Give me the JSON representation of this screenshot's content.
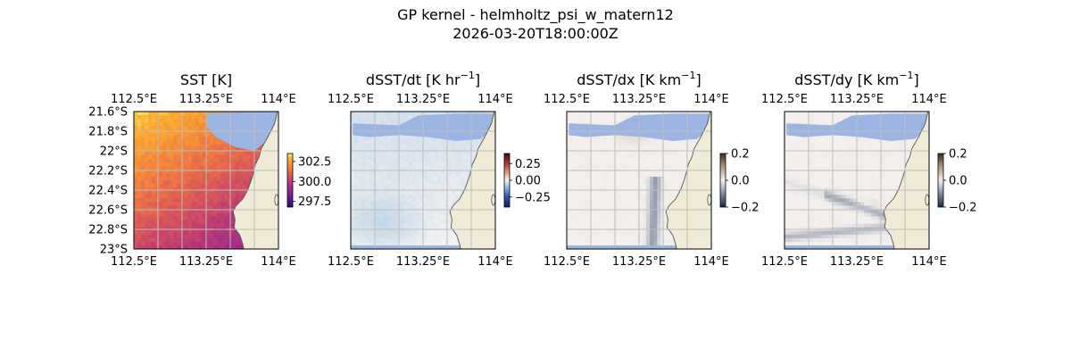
{
  "figure": {
    "title": "GP kernel - helmholtz_psi_w_matern12",
    "subtitle": "2026-03-20T18:00:00Z"
  },
  "chart_data": [
    {
      "type": "heatmap",
      "title": "SST [K]",
      "title_sup": "",
      "title_suffix": "",
      "x_ticks": [
        "112.5°E",
        "113.25°E",
        "114°E"
      ],
      "x_tick_values": [
        112.5,
        113.25,
        114.0
      ],
      "y_ticks": [
        "21.6°S",
        "21.8°S",
        "22°S",
        "22.2°S",
        "22.4°S",
        "22.6°S",
        "22.8°S",
        "23°S"
      ],
      "y_tick_values": [
        -21.6,
        -21.8,
        -22.0,
        -22.2,
        -22.4,
        -22.6,
        -22.8,
        -23.0
      ],
      "xlim": [
        112.5,
        114.0
      ],
      "ylim": [
        -23.0,
        -21.6
      ],
      "colorbar": {
        "ticks": [
          "302.5",
          "300.0",
          "297.5"
        ],
        "tick_values": [
          302.5,
          300.0,
          297.5
        ],
        "range": [
          296.8,
          303.5
        ],
        "colormap": "plasma"
      },
      "colors": {
        "land": "#efebd6",
        "missing": "#9ab5e2",
        "grid": "#bdbdbd"
      },
      "grid": true
    },
    {
      "type": "heatmap",
      "title": "dSST/dt [K hr",
      "title_sup": "−1",
      "title_suffix": "]",
      "x_ticks": [
        "112.5°E",
        "113.25°E",
        "114°E"
      ],
      "x_tick_values": [
        112.5,
        113.25,
        114.0
      ],
      "y_ticks": [],
      "xlim": [
        112.5,
        114.0
      ],
      "ylim": [
        -23.0,
        -21.6
      ],
      "colorbar": {
        "ticks": [
          "0.25",
          "0.00",
          "−0.25"
        ],
        "tick_values": [
          0.25,
          0.0,
          -0.25
        ],
        "range": [
          -0.4,
          0.4
        ],
        "colormap": "balance"
      },
      "colors": {
        "land": "#efebd6",
        "missing": "#9ab5e2",
        "grid": "#bdbdbd"
      },
      "grid": true
    },
    {
      "type": "heatmap",
      "title": "dSST/dx [K km",
      "title_sup": "−1",
      "title_suffix": "]",
      "x_ticks": [
        "112.5°E",
        "113.25°E",
        "114°E"
      ],
      "x_tick_values": [
        112.5,
        113.25,
        114.0
      ],
      "y_ticks": [],
      "xlim": [
        112.5,
        114.0
      ],
      "ylim": [
        -23.0,
        -21.6
      ],
      "colorbar": {
        "ticks": [
          "0.2",
          "0.0",
          "−0.2"
        ],
        "tick_values": [
          0.2,
          0.0,
          -0.2
        ],
        "range": [
          -0.2,
          0.2
        ],
        "colormap": "diff"
      },
      "colors": {
        "land": "#efebd6",
        "missing": "#9ab5e2",
        "grid": "#bdbdbd"
      },
      "grid": true
    },
    {
      "type": "heatmap",
      "title": "dSST/dy [K km",
      "title_sup": "−1",
      "title_suffix": "]",
      "x_ticks": [
        "112.5°E",
        "113.25°E",
        "114°E"
      ],
      "x_tick_values": [
        112.5,
        113.25,
        114.0
      ],
      "y_ticks": [],
      "xlim": [
        112.5,
        114.0
      ],
      "ylim": [
        -23.0,
        -21.6
      ],
      "colorbar": {
        "ticks": [
          "0.2",
          "0.0",
          "−0.2"
        ],
        "tick_values": [
          0.2,
          0.0,
          -0.2
        ],
        "range": [
          -0.2,
          0.2
        ],
        "colormap": "diff"
      },
      "colors": {
        "land": "#efebd6",
        "missing": "#9ab5e2",
        "grid": "#bdbdbd"
      },
      "grid": true
    }
  ]
}
